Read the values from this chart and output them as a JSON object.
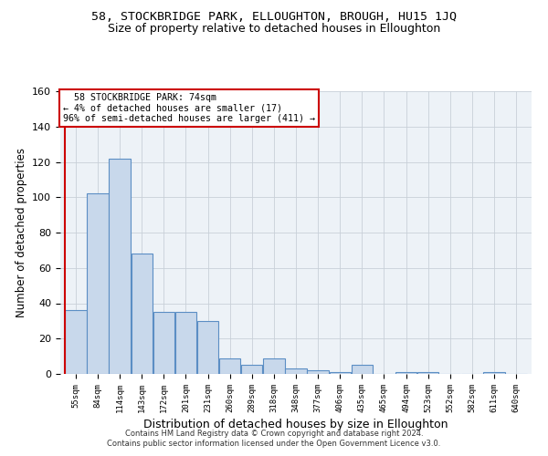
{
  "title1": "58, STOCKBRIDGE PARK, ELLOUGHTON, BROUGH, HU15 1JQ",
  "title2": "Size of property relative to detached houses in Elloughton",
  "xlabel": "Distribution of detached houses by size in Elloughton",
  "ylabel": "Number of detached properties",
  "footnote1": "Contains HM Land Registry data © Crown copyright and database right 2024.",
  "footnote2": "Contains public sector information licensed under the Open Government Licence v3.0.",
  "categories": [
    "55sqm",
    "84sqm",
    "114sqm",
    "143sqm",
    "172sqm",
    "201sqm",
    "231sqm",
    "260sqm",
    "289sqm",
    "318sqm",
    "348sqm",
    "377sqm",
    "406sqm",
    "435sqm",
    "465sqm",
    "494sqm",
    "523sqm",
    "552sqm",
    "582sqm",
    "611sqm",
    "640sqm"
  ],
  "values": [
    36,
    102,
    122,
    68,
    35,
    35,
    30,
    9,
    5,
    9,
    3,
    2,
    1,
    5,
    0,
    1,
    1,
    0,
    0,
    1,
    0
  ],
  "bar_color": "#c8d8eb",
  "bar_edge_color": "#5b8ec4",
  "annotation_text": "  58 STOCKBRIDGE PARK: 74sqm\n← 4% of detached houses are smaller (17)\n96% of semi-detached houses are larger (411) →",
  "annotation_box_color": "#ffffff",
  "annotation_box_edge_color": "#cc0000",
  "ylim": [
    0,
    160
  ],
  "yticks": [
    0,
    20,
    40,
    60,
    80,
    100,
    120,
    140,
    160
  ],
  "grid_color": "#c8d0d8",
  "bg_color": "#edf2f7",
  "title1_fontsize": 9.5,
  "title2_fontsize": 9,
  "xlabel_fontsize": 9,
  "ylabel_fontsize": 8.5,
  "footnote_fontsize": 6.0
}
